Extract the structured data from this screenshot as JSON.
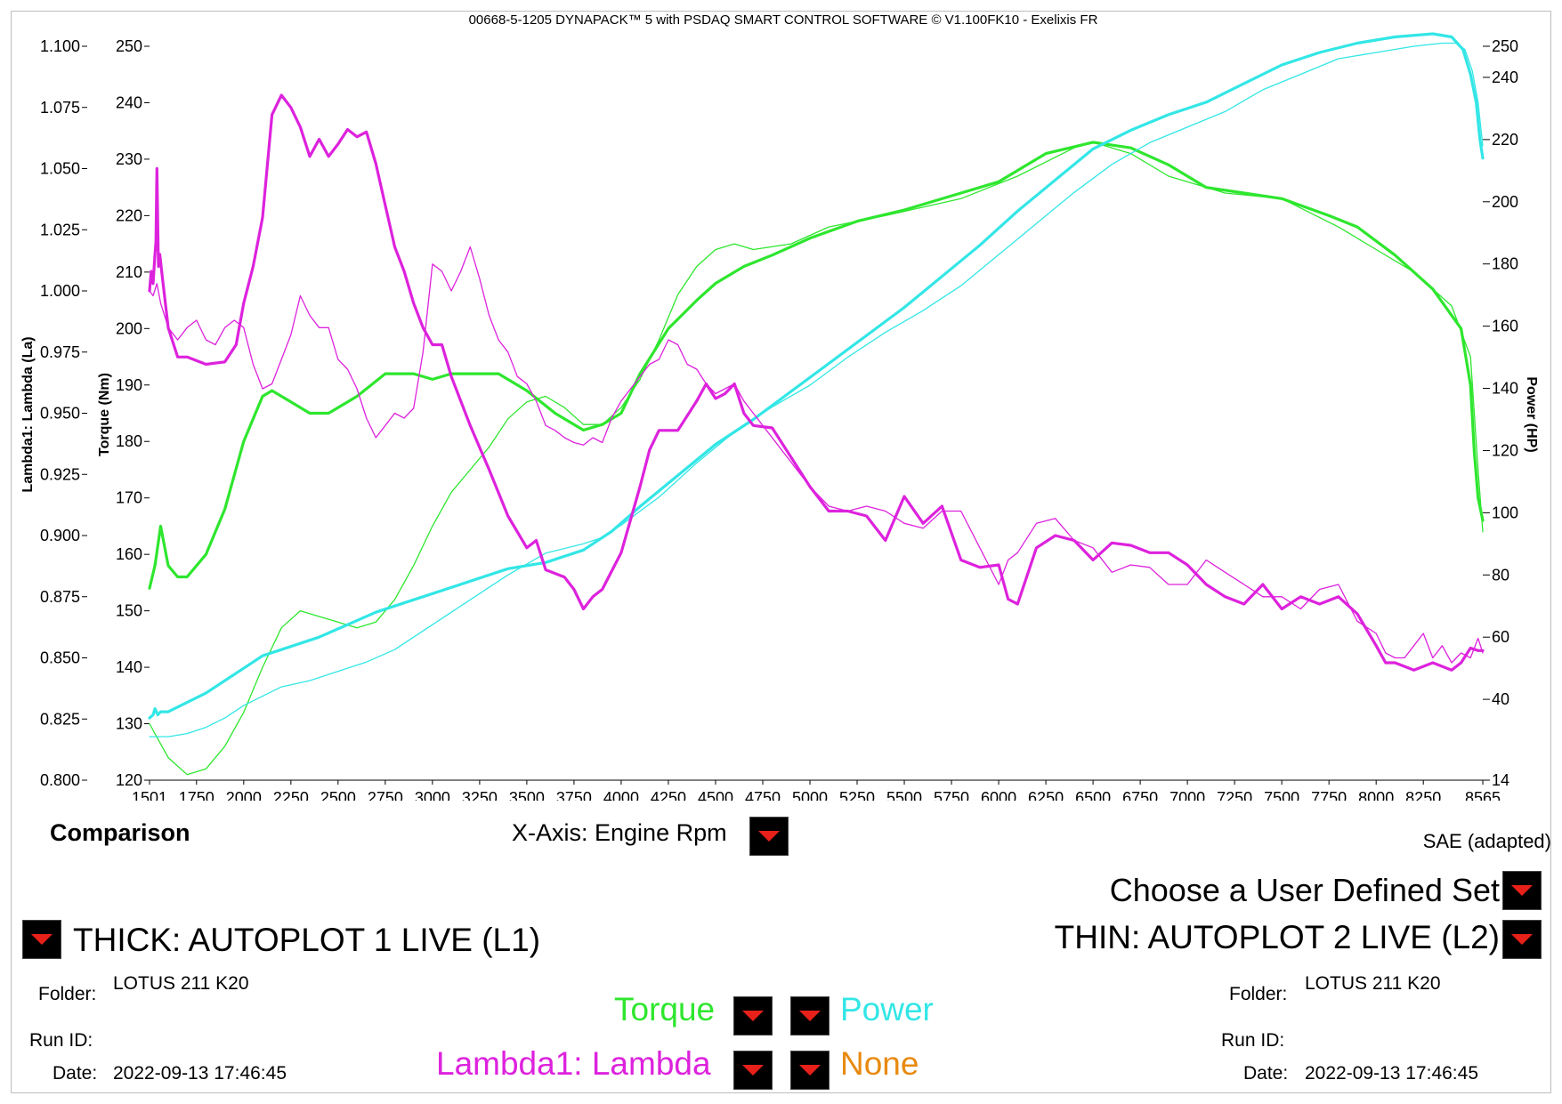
{
  "header": {
    "title": "00668-5-1205 DYNAPACK™ 5 with PSDAQ SMART CONTROL SOFTWARE © V1.100FK10 - Exelixis FR"
  },
  "controls": {
    "comparison": "Comparison",
    "x_axis": "X-Axis: Engine Rpm",
    "sae": "SAE (adapted)",
    "user_set": "Choose a User Defined Set"
  },
  "runs": {
    "thick": {
      "label": "THICK: AUTOPLOT 1 LIVE (L1)",
      "folder_label": "Folder:",
      "folder": "LOTUS 211 K20",
      "runid_label": "Run ID:",
      "runid": "",
      "date_label": "Date:",
      "date": "2022-09-13 17:46:45"
    },
    "thin": {
      "label": "THIN: AUTOPLOT 2 LIVE (L2)",
      "folder_label": "Folder:",
      "folder": "LOTUS 211 K20",
      "runid_label": "Run ID:",
      "runid": "",
      "date_label": "Date:",
      "date": "2022-09-13 17:46:45"
    }
  },
  "channels": {
    "torque": "Torque",
    "power": "Power",
    "lambda": "Lambda1: Lambda",
    "none": "None",
    "colors": {
      "torque": "#2ee62e",
      "power": "#33e6e6",
      "lambda": "#dd22dd",
      "none": "#e88a10"
    }
  },
  "chart_data": {
    "type": "line",
    "xlabel": "",
    "x_tick_labels": [
      "1501",
      "1750",
      "2000",
      "2250",
      "2500",
      "2750",
      "3000",
      "3250",
      "3500",
      "3750",
      "4000",
      "4250",
      "4500",
      "4750",
      "5000",
      "5250",
      "5500",
      "5750",
      "6000",
      "6250",
      "6500",
      "6750",
      "7000",
      "7250",
      "7500",
      "7750",
      "8000",
      "8250",
      "8565"
    ],
    "xlim": [
      1501,
      8565
    ],
    "axes": {
      "lambda": {
        "label": "Lambda1: Lambda (La)",
        "lim": [
          0.8,
          1.1
        ],
        "tick_labels": [
          "0.800",
          "0.825",
          "0.850",
          "0.875",
          "0.900",
          "0.925",
          "0.950",
          "0.975",
          "1.000",
          "1.025",
          "1.050",
          "1.075",
          "1.100"
        ]
      },
      "torque": {
        "label": "Torque (Nm)",
        "lim": [
          120,
          250
        ],
        "tick_labels": [
          "120",
          "130",
          "140",
          "150",
          "160",
          "170",
          "180",
          "190",
          "200",
          "210",
          "220",
          "230",
          "240",
          "250"
        ]
      },
      "power": {
        "label": "Power (HP)",
        "lim": [
          14,
          250
        ],
        "tick_labels": [
          "14",
          "40",
          "60",
          "80",
          "100",
          "120",
          "140",
          "160",
          "180",
          "200",
          "220",
          "240",
          "250"
        ]
      }
    },
    "series": [
      {
        "name": "Torque",
        "run": "L1",
        "style": "thick",
        "axis": "torque",
        "color": "#2ee62e",
        "x": [
          1501,
          1530,
          1560,
          1600,
          1650,
          1700,
          1800,
          1900,
          2000,
          2100,
          2150,
          2250,
          2350,
          2450,
          2600,
          2750,
          2900,
          3000,
          3100,
          3250,
          3350,
          3500,
          3650,
          3800,
          3900,
          4000,
          4100,
          4250,
          4400,
          4500,
          4650,
          4800,
          5000,
          5250,
          5500,
          5800,
          6000,
          6250,
          6500,
          6700,
          6900,
          7100,
          7300,
          7500,
          7750,
          7900,
          8100,
          8300,
          8450,
          8500,
          8520,
          8540,
          8565
        ],
        "y": [
          154,
          158,
          165,
          158,
          156,
          156,
          160,
          168,
          180,
          188,
          189,
          187,
          185,
          185,
          188,
          192,
          192,
          191,
          192,
          192,
          192,
          189,
          185,
          182,
          183,
          185,
          192,
          200,
          205,
          208,
          211,
          213,
          216,
          219,
          221,
          224,
          226,
          231,
          233,
          232,
          229,
          225,
          224,
          223,
          220,
          218,
          213,
          207,
          200,
          190,
          178,
          170,
          166
        ]
      },
      {
        "name": "Torque",
        "run": "L2",
        "style": "thin",
        "axis": "torque",
        "color": "#2ee62e",
        "x": [
          1501,
          1550,
          1600,
          1700,
          1800,
          1900,
          2000,
          2100,
          2200,
          2300,
          2400,
          2500,
          2600,
          2700,
          2800,
          2900,
          3000,
          3100,
          3200,
          3300,
          3400,
          3500,
          3600,
          3700,
          3800,
          3900,
          4000,
          4100,
          4200,
          4300,
          4400,
          4500,
          4600,
          4700,
          4900,
          5100,
          5400,
          5800,
          6100,
          6400,
          6500,
          6700,
          6900,
          7200,
          7500,
          7800,
          8000,
          8200,
          8400,
          8500,
          8540,
          8565
        ],
        "y": [
          130,
          127,
          124,
          121,
          122,
          126,
          132,
          140,
          147,
          150,
          149,
          148,
          147,
          148,
          152,
          158,
          165,
          171,
          175,
          179,
          184,
          187,
          188,
          186,
          183,
          183,
          186,
          191,
          198,
          206,
          211,
          214,
          215,
          214,
          215,
          218,
          220,
          223,
          227,
          232,
          233,
          231,
          227,
          224,
          223,
          218,
          214,
          210,
          204,
          195,
          175,
          164
        ]
      },
      {
        "name": "Power",
        "run": "L1",
        "style": "thick",
        "axis": "power",
        "color": "#33e6e6",
        "x": [
          1501,
          1520,
          1530,
          1545,
          1560,
          1600,
          1700,
          1800,
          1900,
          2000,
          2100,
          2250,
          2400,
          2550,
          2700,
          2850,
          3000,
          3200,
          3400,
          3600,
          3800,
          3950,
          4100,
          4300,
          4500,
          4700,
          4900,
          5100,
          5300,
          5500,
          5700,
          5900,
          6100,
          6300,
          6500,
          6700,
          6900,
          7100,
          7300,
          7500,
          7700,
          7900,
          8100,
          8300,
          8400,
          8460,
          8500,
          8530,
          8550,
          8565
        ],
        "y": [
          34,
          35,
          37,
          35,
          36,
          36,
          39,
          42,
          46,
          50,
          54,
          57,
          60,
          64,
          68,
          71,
          74,
          78,
          82,
          84,
          88,
          94,
          102,
          112,
          122,
          130,
          139,
          148,
          157,
          166,
          176,
          186,
          197,
          207,
          217,
          223,
          228,
          232,
          238,
          244,
          248,
          251,
          253,
          254,
          253,
          249,
          241,
          232,
          220,
          214
        ]
      },
      {
        "name": "Power",
        "run": "L2",
        "style": "thin",
        "axis": "power",
        "color": "#33e6e6",
        "x": [
          1501,
          1600,
          1700,
          1800,
          1900,
          2000,
          2100,
          2200,
          2350,
          2500,
          2650,
          2800,
          3000,
          3200,
          3400,
          3600,
          3800,
          3900,
          4000,
          4200,
          4400,
          4600,
          4800,
          5000,
          5200,
          5400,
          5600,
          5800,
          6000,
          6200,
          6400,
          6600,
          6800,
          7000,
          7200,
          7400,
          7600,
          7800,
          8000,
          8200,
          8350,
          8420,
          8470,
          8510,
          8540,
          8565
        ],
        "y": [
          28,
          28,
          29,
          31,
          34,
          38,
          41,
          44,
          46,
          49,
          52,
          56,
          64,
          72,
          80,
          87,
          90,
          92,
          96,
          105,
          116,
          126,
          134,
          141,
          150,
          158,
          165,
          173,
          183,
          193,
          203,
          212,
          219,
          224,
          229,
          236,
          241,
          246,
          248,
          250,
          251,
          251,
          249,
          242,
          232,
          218
        ]
      },
      {
        "name": "Lambda1: Lambda",
        "run": "L1",
        "style": "thick",
        "axis": "lambda",
        "color": "#dd22dd",
        "x": [
          1501,
          1510,
          1520,
          1530,
          1535,
          1540,
          1548,
          1555,
          1570,
          1600,
          1650,
          1700,
          1800,
          1900,
          1960,
          2000,
          2050,
          2100,
          2150,
          2200,
          2250,
          2300,
          2350,
          2400,
          2450,
          2500,
          2550,
          2600,
          2650,
          2700,
          2750,
          2800,
          2850,
          2900,
          2950,
          3000,
          3050,
          3100,
          3200,
          3300,
          3400,
          3500,
          3550,
          3600,
          3700,
          3750,
          3800,
          3850,
          3900,
          4000,
          4100,
          4150,
          4200,
          4300,
          4400,
          4450,
          4500,
          4550,
          4600,
          4650,
          4700,
          4800,
          4900,
          5000,
          5100,
          5200,
          5300,
          5400,
          5500,
          5600,
          5700,
          5800,
          5900,
          6000,
          6050,
          6100,
          6200,
          6300,
          6400,
          6500,
          6600,
          6700,
          6800,
          6900,
          7000,
          7100,
          7200,
          7300,
          7400,
          7500,
          7600,
          7700,
          7800,
          7900,
          8000,
          8050,
          8100,
          8200,
          8300,
          8400,
          8450,
          8500,
          8540,
          8565
        ],
        "y": [
          1.0,
          1.008,
          1.003,
          1.015,
          1.02,
          1.05,
          1.01,
          1.015,
          1.005,
          0.985,
          0.973,
          0.973,
          0.97,
          0.971,
          0.978,
          0.995,
          1.01,
          1.03,
          1.072,
          1.08,
          1.075,
          1.067,
          1.055,
          1.062,
          1.055,
          1.06,
          1.066,
          1.063,
          1.065,
          1.052,
          1.035,
          1.018,
          1.008,
          0.995,
          0.985,
          0.978,
          0.978,
          0.965,
          0.945,
          0.927,
          0.908,
          0.895,
          0.898,
          0.886,
          0.883,
          0.878,
          0.87,
          0.875,
          0.878,
          0.893,
          0.92,
          0.935,
          0.943,
          0.943,
          0.955,
          0.962,
          0.956,
          0.958,
          0.962,
          0.95,
          0.945,
          0.944,
          0.932,
          0.92,
          0.91,
          0.91,
          0.908,
          0.898,
          0.916,
          0.905,
          0.912,
          0.89,
          0.887,
          0.888,
          0.874,
          0.872,
          0.895,
          0.9,
          0.898,
          0.89,
          0.897,
          0.896,
          0.893,
          0.893,
          0.888,
          0.88,
          0.875,
          0.872,
          0.88,
          0.87,
          0.875,
          0.872,
          0.875,
          0.868,
          0.855,
          0.848,
          0.848,
          0.845,
          0.848,
          0.845,
          0.848,
          0.854,
          0.853,
          0.853
        ]
      },
      {
        "name": "Lambda1: Lambda",
        "run": "L2",
        "style": "thin",
        "axis": "lambda",
        "color": "#dd22dd",
        "x": [
          1501,
          1520,
          1540,
          1560,
          1580,
          1600,
          1650,
          1700,
          1750,
          1800,
          1850,
          1900,
          1950,
          2000,
          2050,
          2100,
          2150,
          2200,
          2250,
          2300,
          2350,
          2400,
          2450,
          2500,
          2550,
          2600,
          2650,
          2700,
          2750,
          2800,
          2850,
          2900,
          2950,
          3000,
          3050,
          3100,
          3150,
          3200,
          3250,
          3300,
          3350,
          3400,
          3450,
          3500,
          3550,
          3600,
          3650,
          3700,
          3750,
          3800,
          3850,
          3900,
          3950,
          4000,
          4050,
          4100,
          4150,
          4200,
          4250,
          4300,
          4350,
          4400,
          4450,
          4500,
          4550,
          4600,
          4650,
          4700,
          4750,
          4800,
          4850,
          4900,
          4950,
          5000,
          5100,
          5200,
          5300,
          5400,
          5500,
          5600,
          5700,
          5800,
          5900,
          6000,
          6050,
          6100,
          6200,
          6300,
          6400,
          6500,
          6600,
          6700,
          6800,
          6900,
          7000,
          7100,
          7200,
          7300,
          7400,
          7500,
          7600,
          7700,
          7800,
          7900,
          8000,
          8050,
          8100,
          8150,
          8200,
          8250,
          8300,
          8350,
          8400,
          8450,
          8500,
          8540,
          8565
        ],
        "y": [
          1.0,
          0.998,
          1.003,
          0.995,
          0.99,
          0.985,
          0.98,
          0.985,
          0.988,
          0.98,
          0.978,
          0.985,
          0.988,
          0.985,
          0.97,
          0.96,
          0.962,
          0.972,
          0.982,
          0.998,
          0.99,
          0.985,
          0.985,
          0.972,
          0.968,
          0.96,
          0.948,
          0.94,
          0.945,
          0.95,
          0.948,
          0.952,
          0.975,
          1.011,
          1.008,
          1.0,
          1.008,
          1.018,
          1.005,
          0.99,
          0.98,
          0.975,
          0.965,
          0.962,
          0.955,
          0.945,
          0.943,
          0.94,
          0.938,
          0.937,
          0.94,
          0.938,
          0.948,
          0.955,
          0.96,
          0.965,
          0.97,
          0.972,
          0.98,
          0.978,
          0.97,
          0.968,
          0.962,
          0.958,
          0.96,
          0.962,
          0.955,
          0.95,
          0.945,
          0.94,
          0.935,
          0.93,
          0.925,
          0.92,
          0.912,
          0.91,
          0.912,
          0.91,
          0.905,
          0.903,
          0.91,
          0.91,
          0.895,
          0.88,
          0.89,
          0.893,
          0.905,
          0.907,
          0.898,
          0.895,
          0.885,
          0.888,
          0.887,
          0.88,
          0.88,
          0.89,
          0.885,
          0.88,
          0.875,
          0.875,
          0.87,
          0.878,
          0.88,
          0.865,
          0.86,
          0.852,
          0.85,
          0.85,
          0.855,
          0.86,
          0.85,
          0.855,
          0.848,
          0.852,
          0.85,
          0.858,
          0.852
        ]
      }
    ]
  }
}
